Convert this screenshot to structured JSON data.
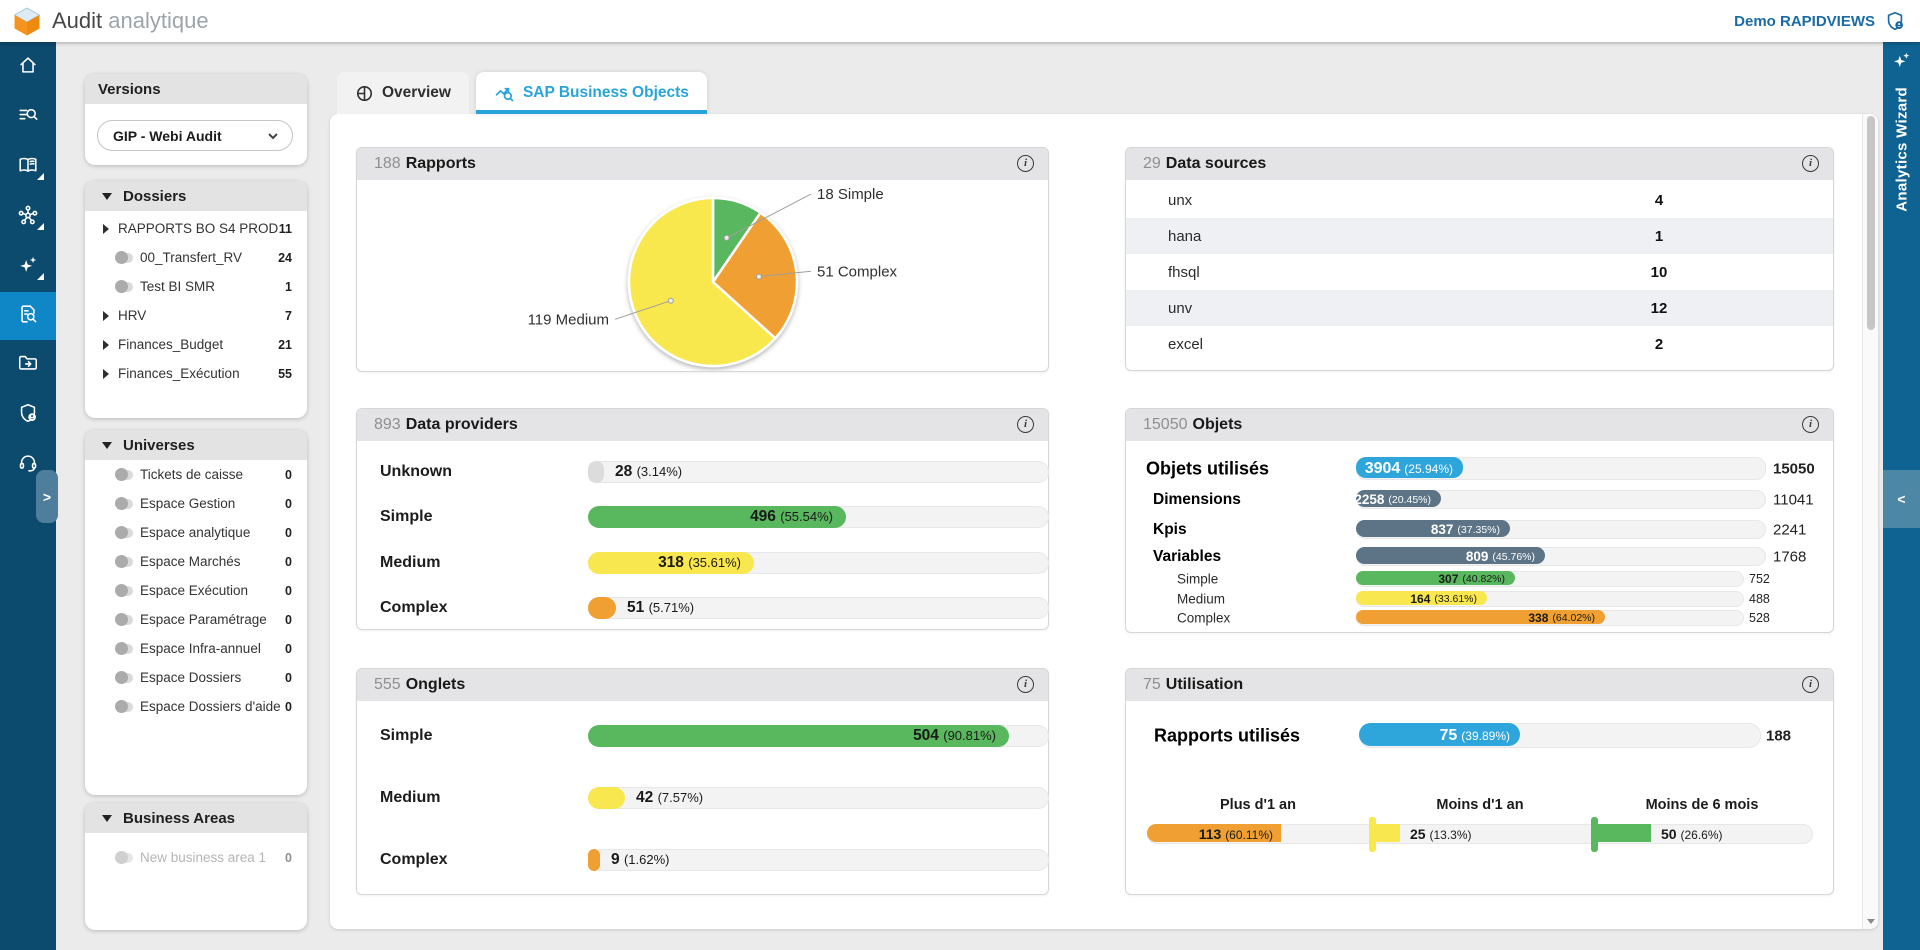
{
  "topbar": {
    "title_primary": "Audit",
    "title_secondary": "analytique",
    "user_label": "Demo RAPIDVIEWS"
  },
  "right_rail": {
    "label": "Analytics Wizard",
    "collapse_glyph": "<"
  },
  "sidebar": {
    "items": [
      {
        "icon": "home",
        "active": false,
        "submenu": false
      },
      {
        "icon": "search-list",
        "active": false,
        "submenu": false
      },
      {
        "icon": "library",
        "active": false,
        "submenu": true
      },
      {
        "icon": "hub",
        "active": false,
        "submenu": true
      },
      {
        "icon": "sparkles",
        "active": false,
        "submenu": true
      },
      {
        "icon": "audit-doc",
        "active": true,
        "submenu": false
      }
    ],
    "bottom_items": [
      {
        "icon": "folder-export"
      },
      {
        "icon": "admin-shield"
      },
      {
        "icon": "support"
      }
    ],
    "expand_glyph": ">"
  },
  "left_panel": {
    "versions": {
      "title": "Versions",
      "selected": "GIP - Webi Audit"
    },
    "sections": [
      {
        "title": "Dossiers",
        "items": [
          {
            "label": "RAPPORTS BO S4 PROD",
            "count": "11",
            "type": "expand"
          },
          {
            "label": "00_Transfert_RV",
            "count": "24",
            "type": "toggle"
          },
          {
            "label": "Test BI SMR",
            "count": "1",
            "type": "toggle"
          },
          {
            "label": "HRV",
            "count": "7",
            "type": "expand"
          },
          {
            "label": "Finances_Budget",
            "count": "21",
            "type": "expand"
          },
          {
            "label": "Finances_Exécution",
            "count": "55",
            "type": "expand"
          }
        ]
      },
      {
        "title": "Universes",
        "items": [
          {
            "label": "Tickets de caisse",
            "count": "0",
            "type": "toggle"
          },
          {
            "label": "Espace Gestion",
            "count": "0",
            "type": "toggle"
          },
          {
            "label": "Espace analytique",
            "count": "0",
            "type": "toggle"
          },
          {
            "label": "Espace Marchés",
            "count": "0",
            "type": "toggle"
          },
          {
            "label": "Espace Exécution",
            "count": "0",
            "type": "toggle"
          },
          {
            "label": "Espace Paramétrage",
            "count": "0",
            "type": "toggle"
          },
          {
            "label": "Espace Infra-annuel",
            "count": "0",
            "type": "toggle"
          },
          {
            "label": "Espace Dossiers",
            "count": "0",
            "type": "toggle"
          },
          {
            "label": "Espace Dossiers d'aide",
            "count": "0",
            "type": "toggle"
          }
        ]
      },
      {
        "title": "Business Areas",
        "items": [
          {
            "label": "New business area 1",
            "count": "0",
            "type": "toggle",
            "disabled": true
          }
        ]
      }
    ]
  },
  "tabs": [
    {
      "label": "Overview",
      "icon": "donut",
      "active": false
    },
    {
      "label": "SAP Business Objects",
      "icon": "chart-search",
      "active": true
    }
  ],
  "colors": {
    "green": "#59b75e",
    "yellow": "#f8e74e",
    "orange": "#f0a032",
    "blue": "#2ea6dc",
    "slate": "#5c7486",
    "gray": "#dcdcdc",
    "accent": "#29a4da"
  },
  "cards": {
    "rapports": {
      "count": "188",
      "title": "Rapports",
      "pie": [
        {
          "label": "18 Simple",
          "value": 18,
          "color": "green"
        },
        {
          "label": "51 Complex",
          "value": 51,
          "color": "orange"
        },
        {
          "label": "119 Medium",
          "value": 119,
          "color": "yellow"
        }
      ]
    },
    "data_sources": {
      "count": "29",
      "title": "Data sources",
      "rows": [
        {
          "label": "unx",
          "value": "4"
        },
        {
          "label": "hana",
          "value": "1"
        },
        {
          "label": "fhsql",
          "value": "10"
        },
        {
          "label": "unv",
          "value": "12"
        },
        {
          "label": "excel",
          "value": "2"
        }
      ]
    },
    "data_providers": {
      "count": "893",
      "title": "Data providers",
      "rows": [
        {
          "label": "Unknown",
          "value": "28",
          "pct": "(3.14%)",
          "color": "gray",
          "text": "out"
        },
        {
          "label": "Simple",
          "value": "496",
          "pct": "(55.54%)",
          "color": "green",
          "text": "in"
        },
        {
          "label": "Medium",
          "value": "318",
          "pct": "(35.61%)",
          "color": "yellow",
          "text": "in"
        },
        {
          "label": "Complex",
          "value": "51",
          "pct": "(5.71%)",
          "color": "orange",
          "text": "out"
        }
      ]
    },
    "objets": {
      "count": "15050",
      "title": "Objets",
      "rows": [
        {
          "label": "Objets utilisés",
          "value": "3904",
          "pct": "(25.94%)",
          "total": "15050",
          "color": "blue",
          "size": "xl"
        },
        {
          "label": "Dimensions",
          "value": "2258",
          "pct": "(20.45%)",
          "total": "11041",
          "color": "slate",
          "size": "lg"
        },
        {
          "label": "Kpis",
          "value": "837",
          "pct": "(37.35%)",
          "total": "2241",
          "color": "slate",
          "size": "lg"
        },
        {
          "label": "Variables",
          "value": "809",
          "pct": "(45.76%)",
          "total": "1768",
          "color": "slate",
          "size": "lg"
        },
        {
          "label": "Simple",
          "value": "307",
          "pct": "(40.82%)",
          "total": "752",
          "color": "green",
          "size": "sm"
        },
        {
          "label": "Medium",
          "value": "164",
          "pct": "(33.61%)",
          "total": "488",
          "color": "yellow",
          "size": "sm"
        },
        {
          "label": "Complex",
          "value": "338",
          "pct": "(64.02%)",
          "total": "528",
          "color": "orange",
          "size": "sm"
        }
      ]
    },
    "onglets": {
      "count": "555",
      "title": "Onglets",
      "rows": [
        {
          "label": "Simple",
          "value": "504",
          "pct": "(90.81%)",
          "color": "green",
          "text": "in"
        },
        {
          "label": "Medium",
          "value": "42",
          "pct": "(7.57%)",
          "color": "yellow",
          "text": "out"
        },
        {
          "label": "Complex",
          "value": "9",
          "pct": "(1.62%)",
          "color": "orange",
          "text": "out"
        }
      ]
    },
    "utilisation": {
      "count": "75",
      "title": "Utilisation",
      "main_row": {
        "label": "Rapports utilisés",
        "value": "75",
        "pct": "(39.89%)",
        "total": "188",
        "color": "blue"
      },
      "segments": [
        {
          "label": "Plus d'1 an",
          "value": "113",
          "pct": "(60.11%)",
          "color": "orange"
        },
        {
          "label": "Moins d'1 an",
          "value": "25",
          "pct": "(13.3%)",
          "color": "yellow"
        },
        {
          "label": "Moins de 6 mois",
          "value": "50",
          "pct": "(26.6%)",
          "color": "green"
        }
      ]
    }
  }
}
